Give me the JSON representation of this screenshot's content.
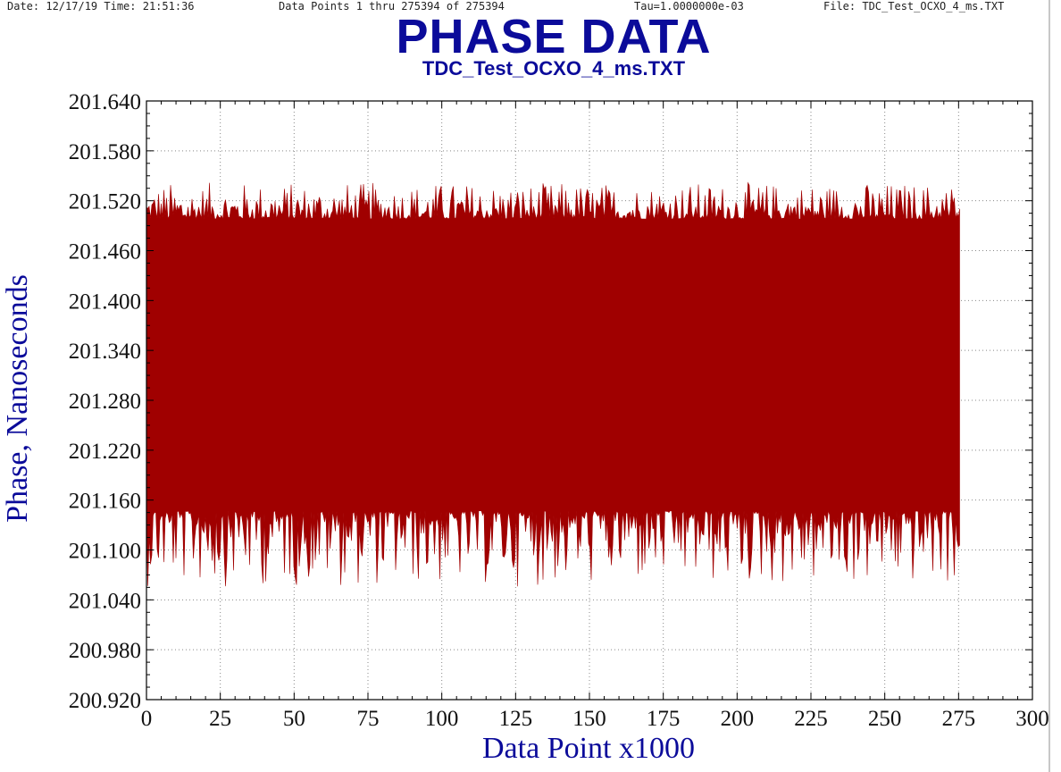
{
  "header": {
    "date": "Date: 12/17/19   Time: 21:51:36",
    "points": "Data Points 1 thru 275394  of 275394",
    "tau": "Tau=1.0000000e-03",
    "file": "File: TDC_Test_OCXO_4_ms.TXT"
  },
  "colors": {
    "title": "#0b0b9a",
    "series": "#a00000",
    "grid": "#888888"
  },
  "chart_data": {
    "type": "area",
    "title": "PHASE DATA",
    "subtitle": "TDC_Test_OCXO_4_ms.TXT",
    "xlabel": "Data Point  x1000",
    "ylabel": "Phase, Nanoseconds",
    "xlim": [
      0,
      300
    ],
    "ylim": [
      200.92,
      201.64
    ],
    "x_ticks": [
      "0",
      "25",
      "50",
      "75",
      "100",
      "125",
      "150",
      "175",
      "200",
      "225",
      "250",
      "275",
      "300"
    ],
    "y_ticks": [
      "200.920",
      "200.980",
      "201.040",
      "201.100",
      "201.160",
      "201.220",
      "201.280",
      "201.340",
      "201.400",
      "201.460",
      "201.520",
      "201.580",
      "201.640"
    ],
    "grid": true,
    "series": [
      {
        "x_range": [
          0,
          275.394
        ],
        "dense_band": [
          201.145,
          201.5
        ],
        "max": 201.54,
        "min": 201.06
      }
    ]
  }
}
